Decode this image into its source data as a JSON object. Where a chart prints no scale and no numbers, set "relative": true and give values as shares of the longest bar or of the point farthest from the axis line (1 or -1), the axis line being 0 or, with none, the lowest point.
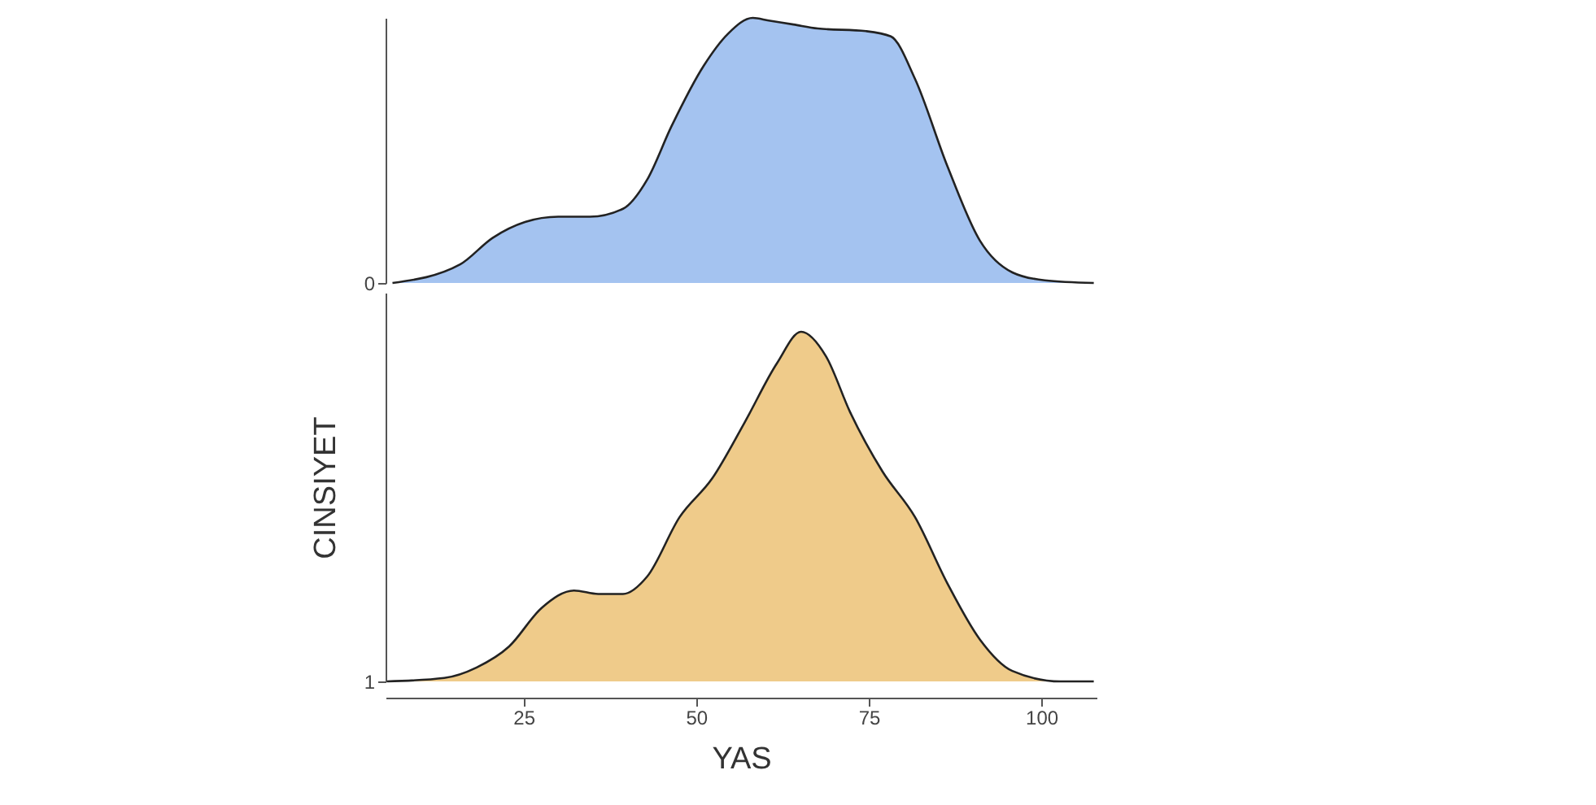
{
  "chart_data": [
    {
      "type": "area",
      "relative": true,
      "tick_labels": false,
      "xlim": [
        5,
        108
      ],
      "series": [
        {
          "name": "0",
          "color": "#a4c3f0",
          "x": [
            6,
            15.8,
            20.5,
            25.2,
            30,
            34.6,
            39.4,
            42.9,
            46.4,
            51.1,
            54.6,
            58.2,
            60.5,
            64.1,
            67.6,
            74.6,
            78.2,
            81.7,
            86.4,
            91.1,
            95.8,
            100.5,
            107.6
          ],
          "values": [
            0,
            0.07,
            0.17,
            0.23,
            0.25,
            0.25,
            0.28,
            0.39,
            0.59,
            0.82,
            0.94,
            1.0,
            0.99,
            0.975,
            0.96,
            0.95,
            0.93,
            0.77,
            0.44,
            0.16,
            0.04,
            0.01,
            0
          ]
        }
      ]
    },
    {
      "type": "area",
      "relative": true,
      "tick_labels": "x",
      "xlabel": "YAS",
      "ylabel": "CINSIYET",
      "xlim": [
        5,
        108
      ],
      "xticks": [
        25,
        50,
        75,
        100
      ],
      "series": [
        {
          "name": "1",
          "color": "#efcb8a",
          "x": [
            5.2,
            13.5,
            18.2,
            22.9,
            27.6,
            32.3,
            35.8,
            39.4,
            42.9,
            47.6,
            52.3,
            57,
            61.7,
            65.2,
            68.8,
            72.3,
            77,
            81.7,
            86.4,
            91.1,
            95.8,
            102.8,
            107.6
          ],
          "values": [
            0,
            0.01,
            0.04,
            0.1,
            0.21,
            0.26,
            0.25,
            0.25,
            0.3,
            0.47,
            0.58,
            0.74,
            0.91,
            1.0,
            0.93,
            0.77,
            0.6,
            0.47,
            0.28,
            0.12,
            0.03,
            0,
            0
          ]
        }
      ]
    }
  ]
}
